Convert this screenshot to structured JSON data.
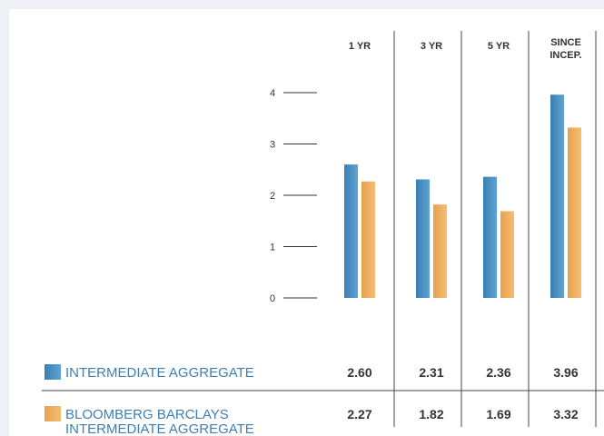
{
  "chart_data": {
    "type": "bar",
    "categories": [
      "1 YR",
      "3 YR",
      "5 YR",
      "SINCE INCEP."
    ],
    "category_lines": [
      [
        "1 YR"
      ],
      [
        "3 YR"
      ],
      [
        "5 YR"
      ],
      [
        "SINCE",
        "INCEP."
      ]
    ],
    "ylim": [
      0,
      4
    ],
    "yticks": [
      0,
      1,
      2,
      3,
      4
    ],
    "grid": false,
    "legend_position": "bottom-left table",
    "series": [
      {
        "name": "INTERMEDIATE AGGREGATE",
        "name_lines": [
          "INTERMEDIATE AGGREGATE"
        ],
        "values": [
          2.6,
          2.31,
          2.36,
          3.96
        ],
        "value_labels": [
          "2.60",
          "2.31",
          "2.36",
          "3.96"
        ],
        "color": "#3a7fb3",
        "color_light": "#5fa3d3"
      },
      {
        "name": "BLOOMBERG BARCLAYS INTERMEDIATE AGGREGATE",
        "name_lines": [
          "BLOOMBERG BARCLAYS",
          "INTERMEDIATE AGGREGATE"
        ],
        "values": [
          2.27,
          1.82,
          1.69,
          3.32
        ],
        "value_labels": [
          "2.27",
          "1.82",
          "1.69",
          "3.32"
        ],
        "color": "#e8a24e",
        "color_light": "#f4bd74"
      }
    ]
  }
}
